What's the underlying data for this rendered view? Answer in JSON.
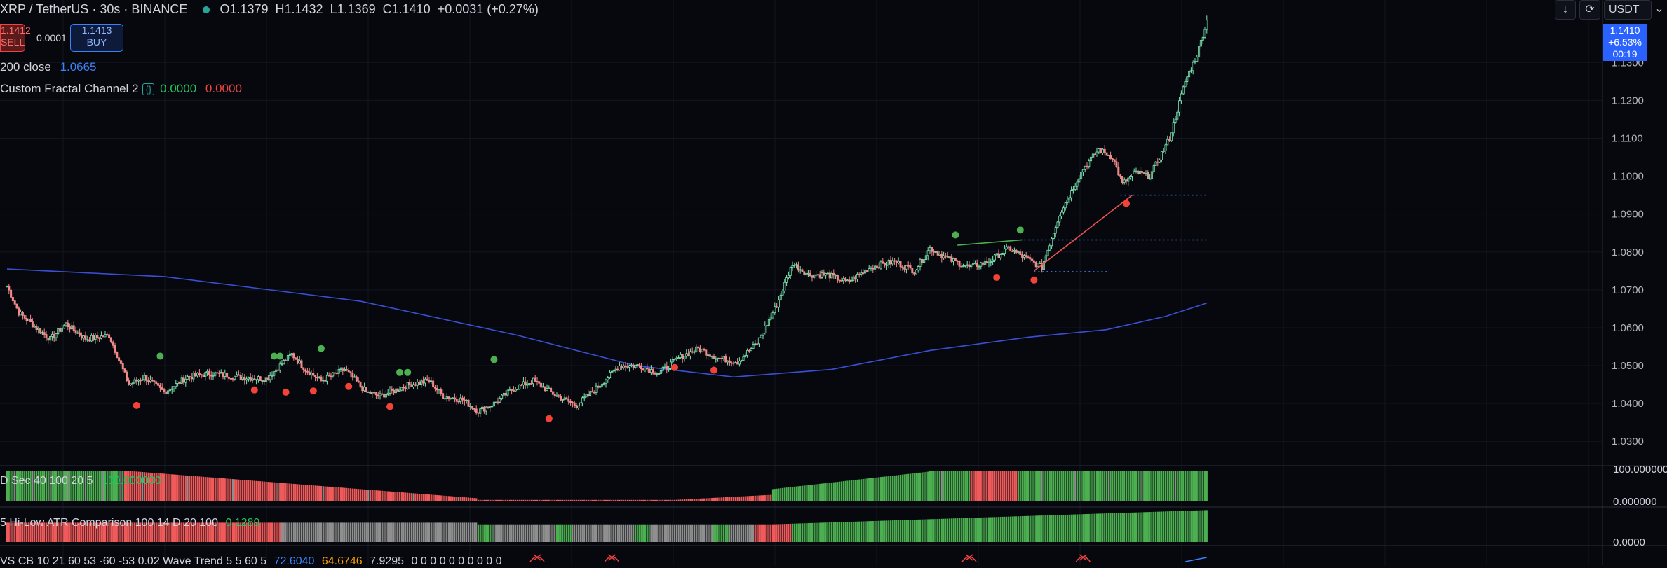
{
  "header": {
    "symbol": "XRP / TetherUS · 30s · BINANCE",
    "open": "O1.1379",
    "high": "H1.1432",
    "low": "L1.1369",
    "close": "C1.1410",
    "change": "+0.0031 (+0.27%)"
  },
  "trade": {
    "sell_price": "1.1412",
    "sell_label": "SELL",
    "spread": "0.0001",
    "buy_price": "1.1413",
    "buy_label": "BUY"
  },
  "indicators": {
    "ma_label": "200 close",
    "ma_value": "1.0665",
    "fractal_label": "Custom Fractal Channel 2",
    "fractal_braces": "{}",
    "fractal_up": "0.0000",
    "fractal_down": "0.0000"
  },
  "toolbar": {
    "currency": "USDT"
  },
  "price_tag": {
    "price": "1.1410",
    "change": "+6.53%",
    "timer": "00:19"
  },
  "panels": {
    "p1_title": "D Sec 40 100 20 5",
    "p1_value": "100.000000",
    "p1_top": "100.000000",
    "p1_bottom": "0.000000",
    "p2_title": "5 Hi-Low ATR Comparison 100 14 D 20 100",
    "p2_value": "0.1289",
    "p2_bottom": "0.0000",
    "p3_title": "VS CB 10 21 60 53 -60 -53 0.02 Wave Trend 5 5 60 5",
    "p3_v1": "72.6040",
    "p3_v2": "64.6746",
    "p3_v3": "7.9295",
    "p3_rest": "0 0 0 0 0 0 0 0 0 0"
  },
  "chart_data": {
    "type": "candlestick",
    "ylim": [
      1.0245,
      1.1465
    ],
    "y_ticks": [
      "1.1300",
      "1.1200",
      "1.1100",
      "1.1000",
      "1.0900",
      "1.0800",
      "1.0700",
      "1.0600",
      "1.0500",
      "1.0400",
      "1.0300"
    ],
    "anchors": [
      [
        0,
        1.071
      ],
      [
        6,
        1.064
      ],
      [
        16,
        1.0595
      ],
      [
        22,
        1.057
      ],
      [
        30,
        1.061
      ],
      [
        40,
        1.057
      ],
      [
        52,
        1.058
      ],
      [
        62,
        1.045
      ],
      [
        70,
        1.047
      ],
      [
        80,
        1.043
      ],
      [
        92,
        1.047
      ],
      [
        104,
        1.048
      ],
      [
        118,
        1.047
      ],
      [
        132,
        1.0465
      ],
      [
        145,
        1.053
      ],
      [
        152,
        1.049
      ],
      [
        160,
        1.046
      ],
      [
        172,
        1.049
      ],
      [
        183,
        1.043
      ],
      [
        190,
        1.042
      ],
      [
        205,
        1.045
      ],
      [
        215,
        1.046
      ],
      [
        222,
        1.042
      ],
      [
        232,
        1.041
      ],
      [
        240,
        1.038
      ],
      [
        248,
        1.04
      ],
      [
        258,
        1.044
      ],
      [
        268,
        1.046
      ],
      [
        280,
        1.042
      ],
      [
        290,
        1.0395
      ],
      [
        300,
        1.044
      ],
      [
        312,
        1.05
      ],
      [
        322,
        1.05
      ],
      [
        332,
        1.048
      ],
      [
        342,
        1.052
      ],
      [
        352,
        1.0545
      ],
      [
        362,
        1.052
      ],
      [
        372,
        1.051
      ],
      [
        382,
        1.056
      ],
      [
        392,
        1.066
      ],
      [
        400,
        1.077
      ],
      [
        408,
        1.074
      ],
      [
        418,
        1.074
      ],
      [
        428,
        1.072
      ],
      [
        440,
        1.076
      ],
      [
        452,
        1.0775
      ],
      [
        462,
        1.075
      ],
      [
        470,
        1.081
      ],
      [
        480,
        1.078
      ],
      [
        490,
        1.076
      ],
      [
        500,
        1.0775
      ],
      [
        510,
        1.081
      ],
      [
        520,
        1.078
      ],
      [
        527,
        1.076
      ],
      [
        536,
        1.09
      ],
      [
        548,
        1.102
      ],
      [
        556,
        1.107
      ],
      [
        563,
        1.105
      ],
      [
        568,
        1.098
      ],
      [
        575,
        1.101
      ],
      [
        582,
        1.1
      ],
      [
        592,
        1.11
      ],
      [
        600,
        1.125
      ],
      [
        606,
        1.132
      ],
      [
        611,
        1.141
      ]
    ],
    "sma200": [
      [
        0,
        1.0755
      ],
      [
        80,
        1.0735
      ],
      [
        180,
        1.067
      ],
      [
        260,
        1.058
      ],
      [
        320,
        1.05
      ],
      [
        370,
        1.047
      ],
      [
        420,
        1.049
      ],
      [
        470,
        1.054
      ],
      [
        520,
        1.0575
      ],
      [
        560,
        1.0595
      ],
      [
        590,
        1.063
      ],
      [
        611,
        1.0665
      ]
    ],
    "fractal_high_markers": [
      [
        78,
        1.0525
      ],
      [
        136,
        1.0525
      ],
      [
        139,
        1.0525
      ],
      [
        160,
        1.0545
      ],
      [
        200,
        1.0482
      ],
      [
        204,
        1.0482
      ],
      [
        248,
        1.0516
      ],
      [
        483,
        1.0845
      ],
      [
        516,
        1.0858
      ]
    ],
    "fractal_low_markers": [
      [
        66,
        1.0395
      ],
      [
        126,
        1.0436
      ],
      [
        142,
        1.043
      ],
      [
        156,
        1.0433
      ],
      [
        174,
        1.0445
      ],
      [
        195,
        1.0392
      ],
      [
        276,
        1.036
      ],
      [
        340,
        1.0495
      ],
      [
        360,
        1.0488
      ],
      [
        504,
        1.0733
      ],
      [
        523,
        1.0726
      ],
      [
        570,
        1.0928
      ]
    ],
    "support_lines": [
      {
        "from": 567,
        "to": 611,
        "y": 1.095
      },
      {
        "from": 518,
        "to": 611,
        "y": 1.0832
      },
      {
        "from": 523,
        "to": 560,
        "y": 1.0748
      }
    ],
    "trend_lines": [
      {
        "color": "green",
        "from": [
          484,
          1.0818
        ],
        "to": [
          517,
          1.0832
        ]
      },
      {
        "color": "red",
        "from": [
          523,
          1.075
        ],
        "to": [
          573,
          1.095
        ]
      }
    ]
  }
}
